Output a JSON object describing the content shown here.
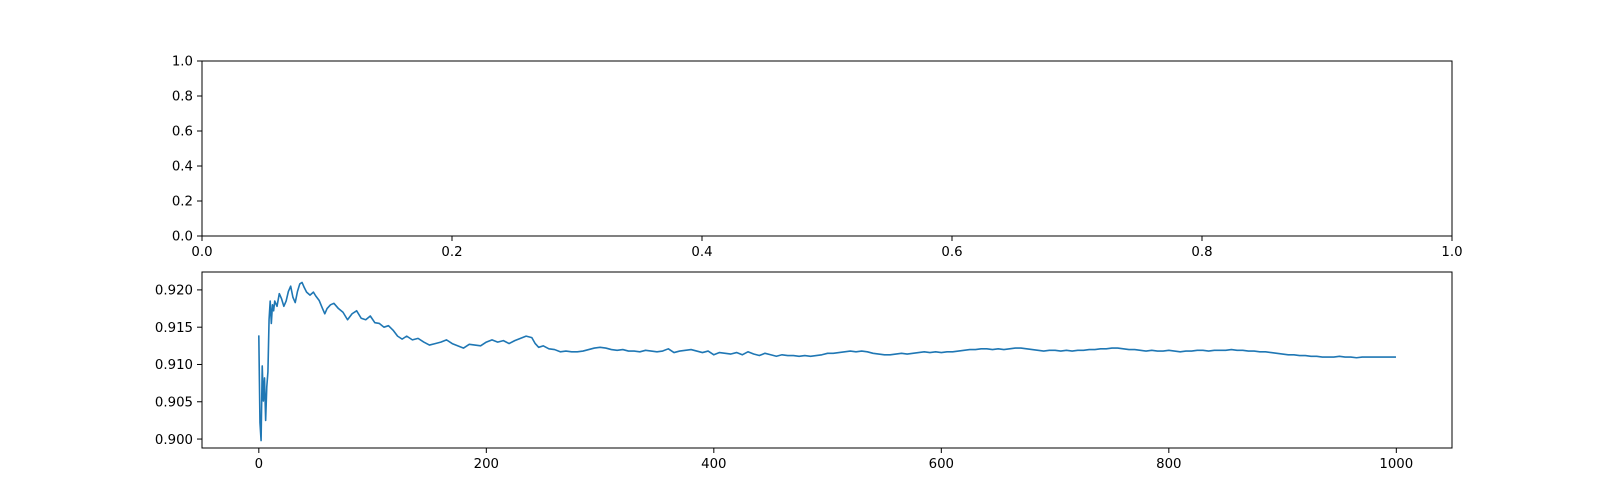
{
  "colors": {
    "series": "#1f77b4",
    "axes": "#000000",
    "background": "#ffffff"
  },
  "chart_data": [
    {
      "type": "line",
      "title": "",
      "xlabel": "",
      "ylabel": "",
      "xlim": [
        0,
        1
      ],
      "ylim": [
        0,
        1
      ],
      "grid": false,
      "xticks": [
        0.0,
        0.2,
        0.4,
        0.6,
        0.8,
        1.0
      ],
      "xtick_labels": [
        "0.0",
        "0.2",
        "0.4",
        "0.6",
        "0.8",
        "1.0"
      ],
      "yticks": [
        0.0,
        0.2,
        0.4,
        0.6,
        0.8,
        1.0
      ],
      "ytick_labels": [
        "0.0",
        "0.2",
        "0.4",
        "0.6",
        "0.8",
        "1.0"
      ],
      "series": []
    },
    {
      "type": "line",
      "title": "",
      "xlabel": "",
      "ylabel": "",
      "xlim": [
        -49.95,
        1048.95
      ],
      "ylim": [
        0.8988,
        0.9224
      ],
      "grid": false,
      "xticks": [
        0,
        200,
        400,
        600,
        800,
        1000
      ],
      "xtick_labels": [
        "0",
        "200",
        "400",
        "600",
        "800",
        "1000"
      ],
      "yticks": [
        0.9,
        0.905,
        0.91,
        0.915,
        0.92
      ],
      "ytick_labels": [
        "0.900",
        "0.905",
        "0.910",
        "0.915",
        "0.920"
      ],
      "series": [
        {
          "points": [
            [
              0,
              0.9138
            ],
            [
              1,
              0.9022
            ],
            [
              2,
              0.8998
            ],
            [
              3,
              0.9098
            ],
            [
              4,
              0.9051
            ],
            [
              5,
              0.9082
            ],
            [
              6,
              0.9025
            ],
            [
              7,
              0.907
            ],
            [
              8,
              0.909
            ],
            [
              9,
              0.916
            ],
            [
              10,
              0.9185
            ],
            [
              11,
              0.9155
            ],
            [
              12,
              0.918
            ],
            [
              13,
              0.9172
            ],
            [
              14,
              0.9185
            ],
            [
              16,
              0.9178
            ],
            [
              18,
              0.9195
            ],
            [
              20,
              0.9188
            ],
            [
              22,
              0.9178
            ],
            [
              24,
              0.9185
            ],
            [
              26,
              0.9198
            ],
            [
              28,
              0.9205
            ],
            [
              30,
              0.919
            ],
            [
              32,
              0.9183
            ],
            [
              34,
              0.9198
            ],
            [
              36,
              0.9208
            ],
            [
              38,
              0.921
            ],
            [
              40,
              0.9203
            ],
            [
              42,
              0.9197
            ],
            [
              45,
              0.9193
            ],
            [
              48,
              0.9197
            ],
            [
              50,
              0.9192
            ],
            [
              53,
              0.9186
            ],
            [
              56,
              0.9175
            ],
            [
              58,
              0.9168
            ],
            [
              60,
              0.9175
            ],
            [
              63,
              0.918
            ],
            [
              66,
              0.9182
            ],
            [
              70,
              0.9175
            ],
            [
              74,
              0.917
            ],
            [
              78,
              0.916
            ],
            [
              82,
              0.9168
            ],
            [
              86,
              0.9172
            ],
            [
              90,
              0.9162
            ],
            [
              94,
              0.916
            ],
            [
              98,
              0.9165
            ],
            [
              102,
              0.9156
            ],
            [
              106,
              0.9155
            ],
            [
              110,
              0.915
            ],
            [
              114,
              0.9152
            ],
            [
              118,
              0.9146
            ],
            [
              122,
              0.9138
            ],
            [
              126,
              0.9134
            ],
            [
              130,
              0.9138
            ],
            [
              135,
              0.9133
            ],
            [
              140,
              0.9135
            ],
            [
              145,
              0.913
            ],
            [
              150,
              0.9126
            ],
            [
              155,
              0.9128
            ],
            [
              160,
              0.913
            ],
            [
              165,
              0.9133
            ],
            [
              170,
              0.9128
            ],
            [
              175,
              0.9125
            ],
            [
              180,
              0.9122
            ],
            [
              185,
              0.9127
            ],
            [
              190,
              0.9126
            ],
            [
              195,
              0.9125
            ],
            [
              200,
              0.913
            ],
            [
              205,
              0.9133
            ],
            [
              210,
              0.913
            ],
            [
              215,
              0.9132
            ],
            [
              220,
              0.9128
            ],
            [
              225,
              0.9132
            ],
            [
              230,
              0.9135
            ],
            [
              235,
              0.9138
            ],
            [
              240,
              0.9136
            ],
            [
              243,
              0.9128
            ],
            [
              246,
              0.9123
            ],
            [
              250,
              0.9125
            ],
            [
              255,
              0.9121
            ],
            [
              260,
              0.912
            ],
            [
              265,
              0.9117
            ],
            [
              270,
              0.9118
            ],
            [
              275,
              0.9117
            ],
            [
              280,
              0.9117
            ],
            [
              285,
              0.9118
            ],
            [
              290,
              0.912
            ],
            [
              295,
              0.9122
            ],
            [
              300,
              0.9123
            ],
            [
              305,
              0.9122
            ],
            [
              310,
              0.912
            ],
            [
              315,
              0.9119
            ],
            [
              320,
              0.912
            ],
            [
              325,
              0.9118
            ],
            [
              330,
              0.9118
            ],
            [
              335,
              0.9117
            ],
            [
              340,
              0.9119
            ],
            [
              345,
              0.9118
            ],
            [
              350,
              0.9117
            ],
            [
              355,
              0.9118
            ],
            [
              360,
              0.9121
            ],
            [
              365,
              0.9116
            ],
            [
              370,
              0.9118
            ],
            [
              375,
              0.9119
            ],
            [
              380,
              0.912
            ],
            [
              385,
              0.9118
            ],
            [
              390,
              0.9116
            ],
            [
              395,
              0.9118
            ],
            [
              400,
              0.9113
            ],
            [
              405,
              0.9116
            ],
            [
              410,
              0.9115
            ],
            [
              415,
              0.9114
            ],
            [
              420,
              0.9116
            ],
            [
              425,
              0.9113
            ],
            [
              430,
              0.9117
            ],
            [
              435,
              0.9114
            ],
            [
              440,
              0.9112
            ],
            [
              445,
              0.9115
            ],
            [
              450,
              0.9113
            ],
            [
              455,
              0.9111
            ],
            [
              460,
              0.9113
            ],
            [
              465,
              0.9112
            ],
            [
              470,
              0.9112
            ],
            [
              475,
              0.9111
            ],
            [
              480,
              0.9112
            ],
            [
              485,
              0.9111
            ],
            [
              490,
              0.9112
            ],
            [
              495,
              0.9113
            ],
            [
              500,
              0.9115
            ],
            [
              505,
              0.9115
            ],
            [
              510,
              0.9116
            ],
            [
              515,
              0.9117
            ],
            [
              520,
              0.9118
            ],
            [
              525,
              0.9117
            ],
            [
              530,
              0.9118
            ],
            [
              535,
              0.9117
            ],
            [
              540,
              0.9115
            ],
            [
              545,
              0.9114
            ],
            [
              550,
              0.9113
            ],
            [
              555,
              0.9113
            ],
            [
              560,
              0.9114
            ],
            [
              565,
              0.9115
            ],
            [
              570,
              0.9114
            ],
            [
              575,
              0.9115
            ],
            [
              580,
              0.9116
            ],
            [
              585,
              0.9117
            ],
            [
              590,
              0.9116
            ],
            [
              595,
              0.9117
            ],
            [
              600,
              0.9116
            ],
            [
              605,
              0.9117
            ],
            [
              610,
              0.9117
            ],
            [
              615,
              0.9118
            ],
            [
              620,
              0.9119
            ],
            [
              625,
              0.912
            ],
            [
              630,
              0.912
            ],
            [
              635,
              0.9121
            ],
            [
              640,
              0.9121
            ],
            [
              645,
              0.912
            ],
            [
              650,
              0.9121
            ],
            [
              655,
              0.912
            ],
            [
              660,
              0.9121
            ],
            [
              665,
              0.9122
            ],
            [
              670,
              0.9122
            ],
            [
              675,
              0.9121
            ],
            [
              680,
              0.912
            ],
            [
              685,
              0.9119
            ],
            [
              690,
              0.9118
            ],
            [
              695,
              0.9119
            ],
            [
              700,
              0.9119
            ],
            [
              705,
              0.9118
            ],
            [
              710,
              0.9119
            ],
            [
              715,
              0.9118
            ],
            [
              720,
              0.9119
            ],
            [
              725,
              0.9119
            ],
            [
              730,
              0.912
            ],
            [
              735,
              0.912
            ],
            [
              740,
              0.9121
            ],
            [
              745,
              0.9121
            ],
            [
              750,
              0.9122
            ],
            [
              755,
              0.9122
            ],
            [
              760,
              0.9121
            ],
            [
              765,
              0.912
            ],
            [
              770,
              0.912
            ],
            [
              775,
              0.9119
            ],
            [
              780,
              0.9118
            ],
            [
              785,
              0.9119
            ],
            [
              790,
              0.9118
            ],
            [
              795,
              0.9118
            ],
            [
              800,
              0.9119
            ],
            [
              805,
              0.9118
            ],
            [
              810,
              0.9117
            ],
            [
              815,
              0.9118
            ],
            [
              820,
              0.9118
            ],
            [
              825,
              0.9119
            ],
            [
              830,
              0.9119
            ],
            [
              835,
              0.9118
            ],
            [
              840,
              0.9119
            ],
            [
              845,
              0.9119
            ],
            [
              850,
              0.9119
            ],
            [
              855,
              0.912
            ],
            [
              860,
              0.9119
            ],
            [
              865,
              0.9119
            ],
            [
              870,
              0.9118
            ],
            [
              875,
              0.9118
            ],
            [
              880,
              0.9117
            ],
            [
              885,
              0.9117
            ],
            [
              890,
              0.9116
            ],
            [
              895,
              0.9115
            ],
            [
              900,
              0.9114
            ],
            [
              905,
              0.9113
            ],
            [
              910,
              0.9113
            ],
            [
              915,
              0.9112
            ],
            [
              920,
              0.9112
            ],
            [
              925,
              0.9111
            ],
            [
              930,
              0.9111
            ],
            [
              935,
              0.911
            ],
            [
              940,
              0.911
            ],
            [
              945,
              0.911
            ],
            [
              950,
              0.9111
            ],
            [
              955,
              0.911
            ],
            [
              960,
              0.911
            ],
            [
              965,
              0.9109
            ],
            [
              970,
              0.911
            ],
            [
              975,
              0.911
            ],
            [
              980,
              0.911
            ],
            [
              985,
              0.911
            ],
            [
              990,
              0.911
            ],
            [
              995,
              0.911
            ],
            [
              999,
              0.911
            ]
          ]
        }
      ]
    }
  ]
}
